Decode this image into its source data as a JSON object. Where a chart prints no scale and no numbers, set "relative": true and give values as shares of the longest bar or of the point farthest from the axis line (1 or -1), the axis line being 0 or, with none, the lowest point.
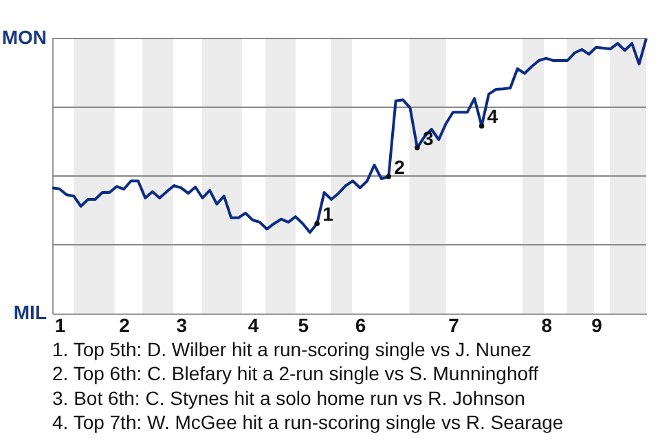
{
  "chart_data": {
    "type": "line",
    "relative": true,
    "categories": [
      null,
      "1",
      null,
      null,
      null,
      null,
      null,
      null,
      null,
      null,
      "2",
      null,
      null,
      null,
      null,
      null,
      null,
      null,
      "3",
      null,
      null,
      null,
      null,
      null,
      null,
      null,
      null,
      null,
      "4",
      null,
      null,
      null,
      null,
      null,
      null,
      "5",
      null,
      null,
      null,
      null,
      null,
      null,
      null,
      "6",
      null,
      null,
      null,
      null,
      null,
      null,
      null,
      null,
      null,
      null,
      null,
      null,
      "7",
      null,
      null,
      null,
      null,
      null,
      null,
      null,
      null,
      null,
      null,
      null,
      null,
      "8",
      null,
      null,
      null,
      null,
      null,
      null,
      "9",
      null,
      null,
      null,
      null,
      null,
      null,
      null
    ],
    "series": [
      {
        "color": "#0c2c84",
        "values": [
          0.457,
          0.453,
          0.432,
          0.427,
          0.39,
          0.415,
          0.415,
          0.44,
          0.44,
          0.462,
          0.452,
          0.482,
          0.482,
          0.42,
          0.443,
          0.42,
          0.443,
          0.465,
          0.457,
          0.437,
          0.46,
          0.42,
          0.448,
          0.398,
          0.427,
          0.348,
          0.348,
          0.365,
          0.34,
          0.332,
          0.307,
          0.327,
          0.343,
          0.332,
          0.352,
          0.327,
          0.295,
          0.327,
          0.44,
          0.415,
          0.437,
          0.465,
          0.482,
          0.457,
          0.482,
          0.54,
          0.49,
          0.498,
          0.773,
          0.777,
          0.748,
          0.603,
          0.643,
          0.67,
          0.632,
          0.69,
          0.732,
          0.732,
          0.732,
          0.782,
          0.682,
          0.798,
          0.815,
          0.817,
          0.82,
          0.89,
          0.873,
          0.898,
          0.92,
          0.928,
          0.92,
          0.92,
          0.92,
          0.948,
          0.96,
          0.943,
          0.968,
          0.965,
          0.962,
          0.982,
          0.957,
          0.982,
          0.907,
          1
        ]
      },
      {
        "type": "scatter",
        "marker": "circle",
        "name": "1",
        "color": "#111111",
        "values": [
          null,
          null,
          null,
          null,
          null,
          null,
          null,
          null,
          null,
          null,
          null,
          null,
          null,
          null,
          null,
          null,
          null,
          null,
          null,
          null,
          null,
          null,
          null,
          null,
          null,
          null,
          null,
          null,
          null,
          null,
          null,
          null,
          null,
          null,
          null,
          null,
          null,
          0.327,
          null,
          null,
          null,
          null,
          null,
          null,
          null,
          null,
          null,
          null,
          null,
          null,
          null,
          null,
          null,
          null,
          null,
          null,
          null,
          null,
          null,
          null,
          null,
          null,
          null,
          null,
          null,
          null,
          null,
          null,
          null,
          null,
          null,
          null,
          null,
          null,
          null,
          null,
          null,
          null,
          null,
          null,
          null,
          null,
          null,
          null
        ]
      },
      {
        "type": "scatter",
        "marker": "circle",
        "name": "2",
        "color": "#111111",
        "values": [
          null,
          null,
          null,
          null,
          null,
          null,
          null,
          null,
          null,
          null,
          null,
          null,
          null,
          null,
          null,
          null,
          null,
          null,
          null,
          null,
          null,
          null,
          null,
          null,
          null,
          null,
          null,
          null,
          null,
          null,
          null,
          null,
          null,
          null,
          null,
          null,
          null,
          null,
          null,
          null,
          null,
          null,
          null,
          null,
          null,
          null,
          null,
          0.498,
          null,
          null,
          null,
          null,
          null,
          null,
          null,
          null,
          null,
          null,
          null,
          null,
          null,
          null,
          null,
          null,
          null,
          null,
          null,
          null,
          null,
          null,
          null,
          null,
          null,
          null,
          null,
          null,
          null,
          null,
          null,
          null,
          null,
          null,
          null,
          null
        ]
      },
      {
        "type": "scatter",
        "marker": "circle",
        "name": "3",
        "color": "#111111",
        "values": [
          null,
          null,
          null,
          null,
          null,
          null,
          null,
          null,
          null,
          null,
          null,
          null,
          null,
          null,
          null,
          null,
          null,
          null,
          null,
          null,
          null,
          null,
          null,
          null,
          null,
          null,
          null,
          null,
          null,
          null,
          null,
          null,
          null,
          null,
          null,
          null,
          null,
          null,
          null,
          null,
          null,
          null,
          null,
          null,
          null,
          null,
          null,
          null,
          null,
          null,
          null,
          0.603,
          null,
          null,
          null,
          null,
          null,
          null,
          null,
          null,
          null,
          null,
          null,
          null,
          null,
          null,
          null,
          null,
          null,
          null,
          null,
          null,
          null,
          null,
          null,
          null,
          null,
          null,
          null,
          null,
          null,
          null,
          null,
          null
        ]
      },
      {
        "type": "scatter",
        "marker": "circle",
        "name": "4",
        "color": "#111111",
        "values": [
          null,
          null,
          null,
          null,
          null,
          null,
          null,
          null,
          null,
          null,
          null,
          null,
          null,
          null,
          null,
          null,
          null,
          null,
          null,
          null,
          null,
          null,
          null,
          null,
          null,
          null,
          null,
          null,
          null,
          null,
          null,
          null,
          null,
          null,
          null,
          null,
          null,
          null,
          null,
          null,
          null,
          null,
          null,
          null,
          null,
          null,
          null,
          null,
          null,
          null,
          null,
          null,
          null,
          null,
          null,
          null,
          null,
          null,
          null,
          null,
          0.682,
          null,
          null,
          null,
          null,
          null,
          null,
          null,
          null,
          null,
          null,
          null,
          null,
          null,
          null,
          null,
          null,
          null,
          null,
          null,
          null,
          null,
          null,
          null
        ]
      }
    ],
    "grid": "y",
    "annotations": [
      "MON",
      "MIL",
      "1. Top 5th: D. Wilber hit a run-scoring single vs J. Nunez",
      "2. Top 6th: C. Blefary hit a 2-run single vs S. Munninghoff",
      "3. Bot 6th: C. Stynes hit a solo home run vs R. Johnson",
      "4. Top 7th: W. McGee hit a run-scoring single vs R. Searage"
    ]
  }
}
